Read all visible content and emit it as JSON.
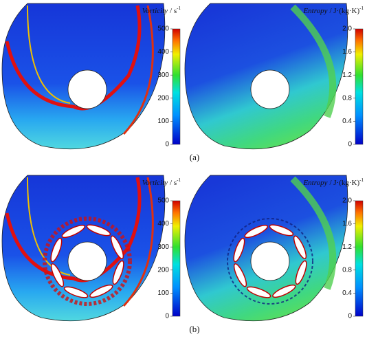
{
  "figure": {
    "panels": [
      {
        "label": "(a)",
        "plots": [
          {
            "quantity": "Vorticity",
            "unit": "/ s",
            "exponent": "-1",
            "clim": [
              0,
              500
            ],
            "ticks": [
              0,
              100,
              200,
              300,
              400,
              500
            ]
          },
          {
            "quantity": "Entropy",
            "unit": "/ J·(kg·K)",
            "exponent": "-1",
            "clim": [
              0,
              2
            ],
            "ticks": [
              0,
              0.4,
              0.8,
              1.2,
              1.6,
              {
                "value": 2,
                "label": "2.0"
              }
            ]
          }
        ]
      },
      {
        "label": "(b)",
        "plots": [
          {
            "quantity": "Vorticity",
            "unit": "/ s",
            "exponent": "-1",
            "clim": [
              0,
              500
            ],
            "ticks": [
              0,
              100,
              200,
              300,
              400,
              500
            ]
          },
          {
            "quantity": "Entropy",
            "unit": "/ J·(kg·K)",
            "exponent": "-1",
            "clim": [
              0,
              2
            ],
            "ticks": [
              0,
              0.4,
              0.8,
              1.2,
              1.6,
              {
                "value": 2,
                "label": "2.0"
              }
            ]
          }
        ]
      }
    ]
  }
}
